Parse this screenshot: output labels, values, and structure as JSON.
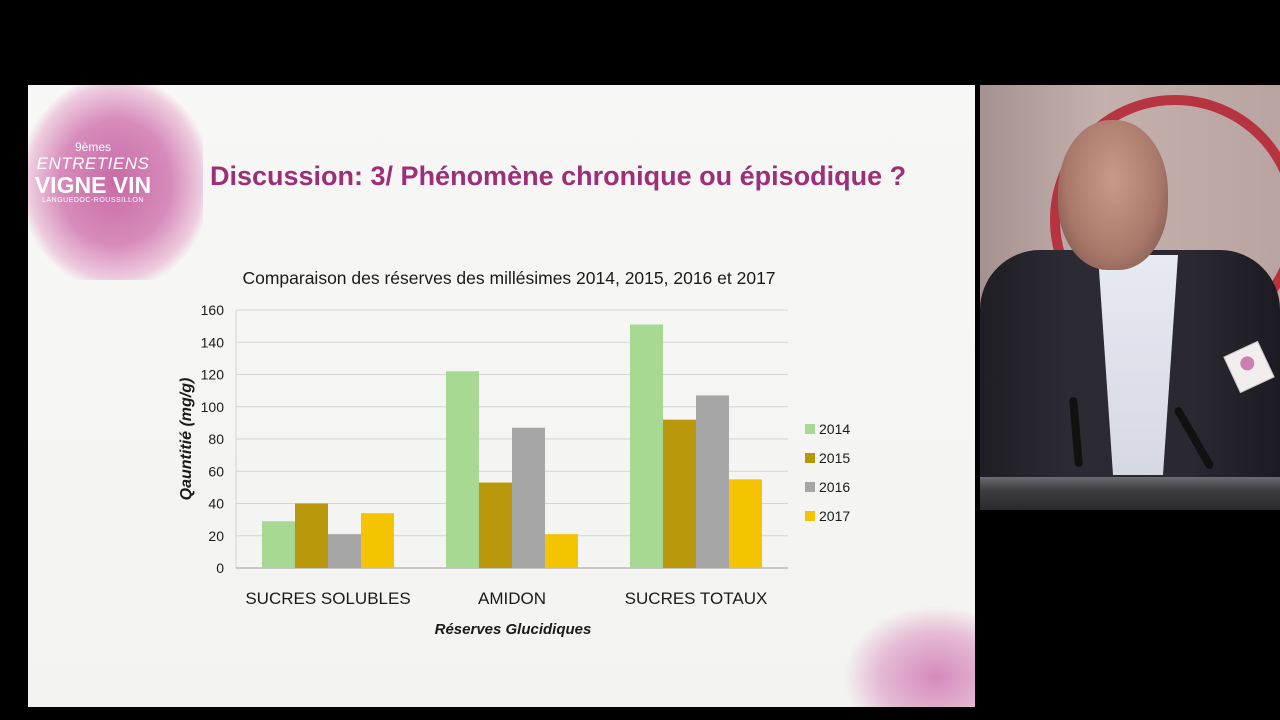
{
  "slide": {
    "title": "Discussion: 3/ Phénomène chronique ou épisodique ?",
    "logo": {
      "edition": "9èmes",
      "line1": "ENTRETIENS",
      "line2": "VIGNE VIN",
      "line3": "LANGUEDOC-ROUSSILLON"
    }
  },
  "chart_data": {
    "type": "bar",
    "title": "Comparaison des réserves des millésimes 2014, 2015, 2016 et 2017",
    "xlabel": "Réserves Glucidiques",
    "ylabel": "Qauntitié (mg/g)",
    "ylim": [
      0,
      160
    ],
    "yticks": [
      0,
      20,
      40,
      60,
      80,
      100,
      120,
      140,
      160
    ],
    "grid": true,
    "legend_position": "right",
    "categories": [
      "SUCRES SOLUBLES",
      "AMIDON",
      "SUCRES TOTAUX"
    ],
    "series": [
      {
        "name": "2014",
        "color": "#a8d992",
        "values": [
          29,
          122,
          151
        ]
      },
      {
        "name": "2015",
        "color": "#b8980a",
        "values": [
          40,
          53,
          92
        ]
      },
      {
        "name": "2016",
        "color": "#a6a6a6",
        "values": [
          21,
          87,
          107
        ]
      },
      {
        "name": "2017",
        "color": "#f5c400",
        "values": [
          34,
          21,
          55
        ]
      }
    ]
  },
  "video": {
    "panel_colors": {
      "emblem": "#b5202e",
      "jacket": "#2a2830",
      "shirt": "#e2e4ec"
    }
  }
}
